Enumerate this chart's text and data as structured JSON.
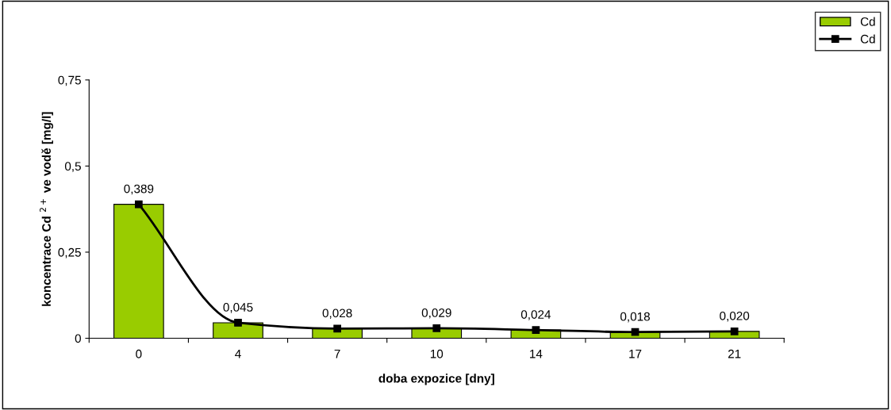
{
  "chart_data": {
    "type": "bar",
    "xlabel": "doba expozice [dny]",
    "ylabel": "koncentrace Cd $^{2+}$ ve vodě [mg/l]",
    "categories": [
      "0",
      "4",
      "7",
      "10",
      "14",
      "17",
      "21"
    ],
    "series": [
      {
        "name": "Cd",
        "color": "#99cc00",
        "values": [
          0.389,
          0.045,
          0.028,
          0.029,
          0.024,
          0.018,
          0.02
        ],
        "value_labels": [
          "0,389",
          "0,045",
          "0,028",
          "0,029",
          "0,024",
          "0,018",
          "0,020"
        ]
      },
      {
        "name": "Cd",
        "type": "line",
        "color": "#000000",
        "values": [
          0.389,
          0.045,
          0.028,
          0.029,
          0.024,
          0.018,
          0.02
        ]
      }
    ],
    "ylim": [
      0,
      0.75
    ],
    "yticks": [
      0,
      {
        "value": 0.25,
        "label": "0,25"
      },
      {
        "value": 0.5,
        "label": "0,5"
      },
      {
        "value": 0.75,
        "label": "0,75"
      }
    ],
    "grid": false,
    "legend": "top right",
    "marker": "square",
    "line_style": "solid"
  }
}
